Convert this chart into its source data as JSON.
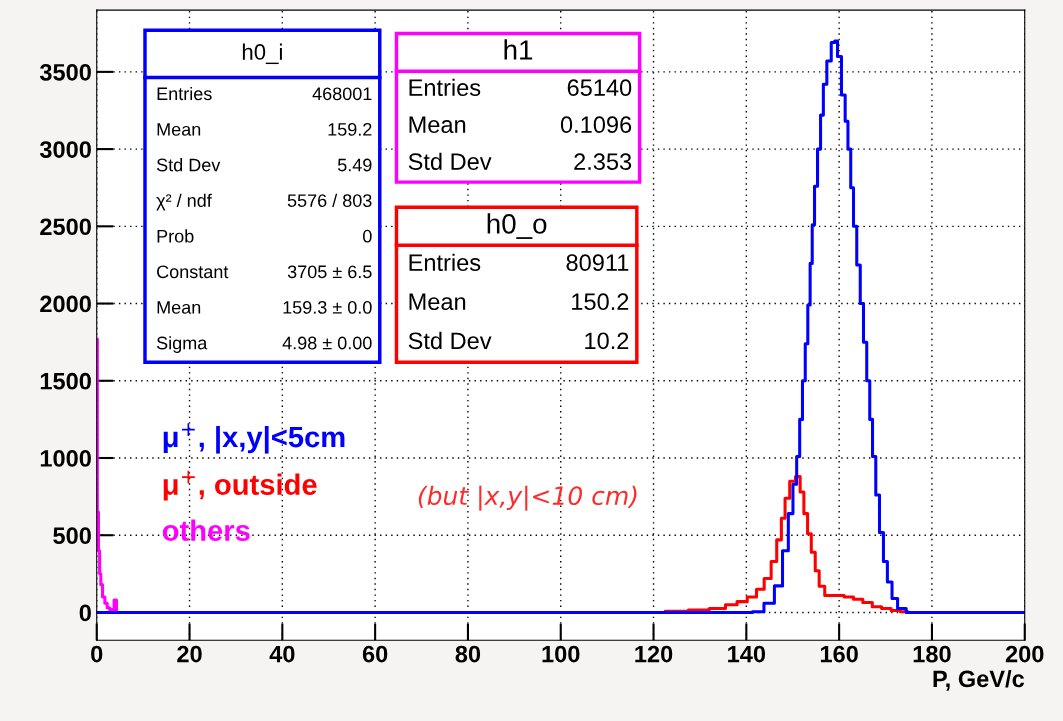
{
  "chart_data": {
    "type": "step",
    "xlabel": "P, GeV/c",
    "xlim": [
      0,
      200
    ],
    "ylim": [
      -180,
      3900
    ],
    "xticks": [
      0,
      20,
      40,
      60,
      80,
      100,
      120,
      140,
      160,
      180,
      200
    ],
    "yticks": [
      0,
      500,
      1000,
      1500,
      2000,
      2500,
      3000,
      3500
    ],
    "grid": true,
    "series": [
      {
        "name": "others",
        "color": "#ff00ff",
        "x": [
          0,
          0.25,
          0.5,
          0.75,
          1,
          1.5,
          2,
          2.5,
          3,
          3.5,
          4,
          4.5,
          5
        ],
        "values": [
          1770,
          650,
          400,
          250,
          180,
          100,
          60,
          30,
          20,
          10,
          80,
          0,
          0
        ]
      },
      {
        "name": "μ$^{+}$, outside",
        "color": "#ff0000",
        "x": [
          120,
          125,
          130,
          134,
          137,
          139,
          141.4,
          143,
          144.7,
          146,
          147.1,
          148,
          148.7,
          150,
          151.2,
          152,
          152.8,
          153.6,
          154.4,
          155.3,
          156.1,
          157.7,
          160.2,
          162,
          164.2,
          166,
          168.3,
          170,
          172.4,
          174,
          175.7,
          185
        ],
        "values": [
          0,
          8,
          15,
          25,
          50,
          70,
          100,
          150,
          220,
          330,
          470,
          610,
          740,
          850,
          880,
          780,
          640,
          510,
          390,
          270,
          170,
          110,
          110,
          100,
          86,
          65,
          37,
          25,
          12,
          5,
          0,
          0
        ]
      },
      {
        "name": "μ$^{+}$, |x,y|<5cm",
        "color": "#0000ff",
        "x": [
          0,
          140,
          142.6,
          145,
          147.1,
          148.5,
          149.6,
          150.5,
          151.2,
          151.8,
          152.4,
          153,
          153.5,
          154,
          154.4,
          155,
          155.7,
          156.3,
          156.9,
          157.8,
          158.8,
          159.3,
          160,
          161,
          161.6,
          162.2,
          162.8,
          163.4,
          164.2,
          164.9,
          165.6,
          166.3,
          166.9,
          167.5,
          168.3,
          169.1,
          170,
          170.8,
          172,
          173.2,
          175.7,
          200
        ],
        "values": [
          0,
          0,
          5,
          60,
          172,
          400,
          640,
          830,
          1010,
          1250,
          1500,
          1740,
          1990,
          2260,
          2510,
          2760,
          3000,
          3220,
          3420,
          3570,
          3690,
          3700,
          3600,
          3350,
          3180,
          3000,
          2750,
          2500,
          2250,
          2000,
          1750,
          1500,
          1250,
          1010,
          760,
          517,
          330,
          197,
          90,
          25,
          0,
          0
        ]
      }
    ],
    "annotations": [
      "h0_i",
      "Entries",
      "468001",
      "Mean",
      "159.2",
      "Std Dev",
      "5.49",
      "χ² / ndf",
      "5576 / 803",
      "Prob",
      "0",
      "Constant",
      "3705 ± 6.5",
      "Mean",
      "159.3 ± 0.0",
      "Sigma",
      "4.98 ± 0.00",
      "h1",
      "Entries",
      "65140",
      "Mean",
      "0.1096",
      "Std Dev",
      "2.353",
      "h0_o",
      "Entries",
      "80911",
      "Mean",
      "150.2",
      "Std Dev",
      "10.2",
      "(but |x,y|<10 cm)"
    ]
  }
}
